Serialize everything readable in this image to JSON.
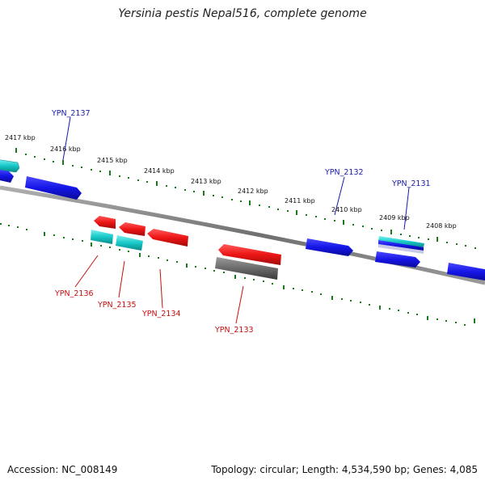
{
  "title": "Yersinia pestis Nepal516, complete genome",
  "footer": {
    "accession": "Accession: NC_008149",
    "summary": "Topology: circular; Length: 4,534,590 bp; Genes: 4,085"
  },
  "scale_labels": [
    "2417 kbp",
    "2416 kbp",
    "2415 kbp",
    "2414 kbp",
    "2413 kbp",
    "2412 kbp",
    "2411 kbp",
    "2410 kbp",
    "2409 kbp",
    "2408 kbp"
  ],
  "gene_labels": {
    "forward": [
      "YPN_2137",
      "YPN_2132",
      "YPN_2131"
    ],
    "reverse": [
      "YPN_2136",
      "YPN_2135",
      "YPN_2134",
      "YPN_2133"
    ]
  },
  "colors": {
    "backbone": "#8a8a8a",
    "forward_gene": "#1515e6",
    "reverse_gene": "#ee1515",
    "rna_gene": "#18c8c8",
    "pseudo_gene": "#6a6a6a",
    "tick": "#1a7a1a",
    "forward_label": "#1a1aaa",
    "reverse_label": "#c21010"
  }
}
